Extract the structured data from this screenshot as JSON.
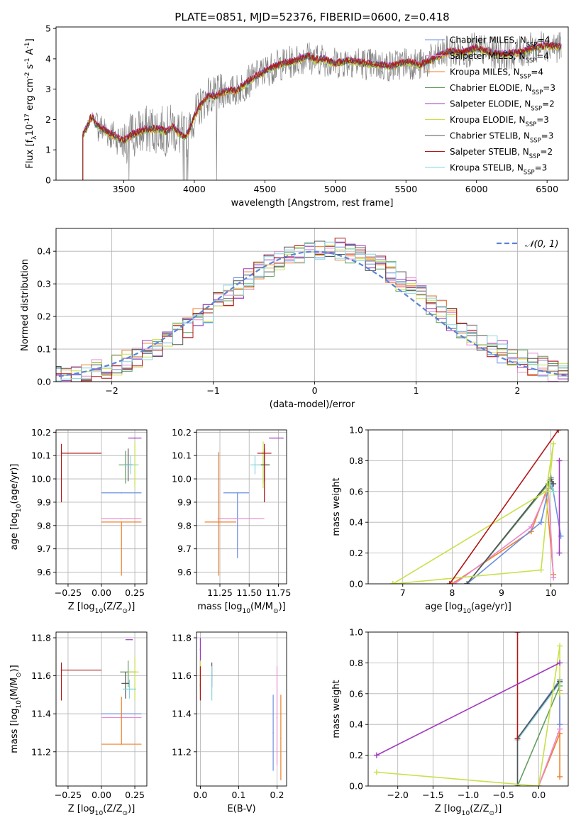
{
  "colors": {
    "chabrier_miles": "#6a8fe0",
    "salpeter_miles": "#e88ad0",
    "kroupa_miles": "#ef7f2a",
    "chabrier_elodie": "#5f9e5f",
    "salpeter_elodie": "#a03ac0",
    "kroupa_elodie": "#c9e04a",
    "chabrier_stelib": "#555555",
    "salpeter_stelib": "#b01818",
    "kroupa_stelib": "#86d4e0",
    "normal": "#5b84d4",
    "grid": "#b0b0b0",
    "data_spectrum": "#808080"
  },
  "chart_data": [
    {
      "id": "spectrum",
      "type": "line",
      "title": "PLATE=0851, MJD=52376, FIBERID=0600, z=0.418",
      "xlabel": "wavelength [Angstrom, rest frame]",
      "ylabel": "Flux [f$_\\lambda$10$^{-17}$ erg cm$^{-2}$ s$^{-1}$ A$^{-1}$]",
      "xlim": [
        3020,
        6650
      ],
      "ylim": [
        0,
        5.05
      ],
      "xticks": [
        "3500",
        "4000",
        "4500",
        "5000",
        "5500",
        "6000",
        "6500"
      ],
      "yticks": [
        "0",
        "1",
        "2",
        "3",
        "4",
        "5"
      ],
      "legend_position": "upper-right",
      "legend": [
        {
          "label": "Chabrier MILES, N$_{SSP}$=4",
          "color": "#6a8fe0"
        },
        {
          "label": "Salpeter MILES, N$_{SSP}$=4",
          "color": "#e88ad0"
        },
        {
          "label": "Kroupa MILES, N$_{SSP}$=4",
          "color": "#ef7f2a"
        },
        {
          "label": "Chabrier ELODIE, N$_{SSP}$=3",
          "color": "#5f9e5f"
        },
        {
          "label": "Salpeter ELODIE, N$_{SSP}$=2",
          "color": "#a03ac0"
        },
        {
          "label": "Kroupa ELODIE, N$_{SSP}$=3",
          "color": "#c9e04a"
        },
        {
          "label": "Chabrier STELIB, N$_{SSP}$=3",
          "color": "#555555"
        },
        {
          "label": "Salpeter STELIB, N$_{SSP}$=2",
          "color": "#b01818"
        },
        {
          "label": "Kroupa STELIB, N$_{SSP}$=3",
          "color": "#86d4e0"
        }
      ],
      "model_continuum": {
        "x": [
          3210,
          3240,
          3260,
          3280,
          3300,
          3330,
          3380,
          3450,
          3500,
          3560,
          3650,
          3720,
          3800,
          3850,
          3900,
          3930,
          3960,
          4000,
          4050,
          4100,
          4150,
          4200,
          4300,
          4400,
          4500,
          4600,
          4700,
          4800,
          4860,
          4900,
          5000,
          5100,
          5200,
          5300,
          5400,
          5500,
          5600,
          5700,
          5800,
          5900,
          6000,
          6100,
          6200,
          6300,
          6400,
          6500,
          6600
        ],
        "y": [
          1.5,
          1.75,
          2.0,
          2.1,
          1.85,
          1.75,
          1.6,
          1.4,
          1.3,
          1.5,
          1.65,
          1.7,
          1.6,
          1.75,
          1.5,
          1.4,
          1.6,
          2.1,
          2.5,
          2.8,
          2.75,
          2.9,
          2.95,
          3.3,
          3.6,
          3.8,
          3.9,
          4.1,
          3.95,
          4.0,
          3.85,
          3.95,
          3.85,
          3.8,
          3.75,
          3.9,
          3.8,
          4.0,
          4.25,
          4.2,
          4.35,
          4.2,
          4.15,
          4.2,
          4.35,
          4.45,
          4.4
        ]
      },
      "data_noise_amplitude": 0.55
    },
    {
      "id": "residuals",
      "type": "histogram",
      "xlabel": "(data-model)/error",
      "ylabel": "Normed distribution",
      "xlim": [
        -2.55,
        2.5
      ],
      "ylim": [
        0,
        0.47
      ],
      "xticks": [
        "−2",
        "−1",
        "0",
        "1",
        "2"
      ],
      "yticks": [
        "0.0",
        "0.1",
        "0.2",
        "0.3",
        "0.4"
      ],
      "legend_position": "upper-right",
      "normal_label": "$\\mathcal{N}(0,1)$",
      "bin_width": 0.1
    },
    {
      "id": "age_vs_Z",
      "type": "errorbar",
      "xlabel": "Z [log$_{10}$(Z/Z$_\\odot$)]",
      "ylabel": "age  [log$_{10}$(age/yr)]",
      "xlim": [
        -0.34,
        0.34
      ],
      "ylim": [
        9.55,
        10.21
      ],
      "xticks": [
        "−0.25",
        "0.00",
        "0.25"
      ],
      "yticks": [
        "9.6",
        "9.7",
        "9.8",
        "9.9",
        "10.0",
        "10.1",
        "10.2"
      ],
      "points": [
        {
          "color": "#6a8fe0",
          "x": 0.15,
          "xerr": [
            0.15,
            0.15
          ],
          "y": 9.94,
          "yerr": [
            0.0,
            0.0
          ]
        },
        {
          "color": "#e88ad0",
          "x": 0.15,
          "xerr": [
            0.15,
            0.15
          ],
          "y": 9.83,
          "yerr": [
            0.0,
            0.0
          ]
        },
        {
          "color": "#ef7f2a",
          "x": 0.15,
          "xerr": [
            0.15,
            0.15
          ],
          "y": 9.815,
          "yerr": [
            0.23,
            0.0
          ]
        },
        {
          "color": "#5f9e5f",
          "x": 0.18,
          "xerr": [
            0.05,
            0.06
          ],
          "y": 10.06,
          "yerr": [
            0.08,
            0.06
          ]
        },
        {
          "color": "#a03ac0",
          "x": 0.25,
          "xerr": [
            0.05,
            0.05
          ],
          "y": 10.175,
          "yerr": [
            0.0,
            0.0
          ]
        },
        {
          "color": "#c9e04a",
          "x": 0.25,
          "xerr": [
            0.05,
            0.03
          ],
          "y": 10.06,
          "yerr": [
            0.1,
            0.1
          ]
        },
        {
          "color": "#555555",
          "x": 0.2,
          "xerr": [
            0.03,
            0.03
          ],
          "y": 10.06,
          "yerr": [
            0.07,
            0.07
          ]
        },
        {
          "color": "#b01818",
          "x": -0.3,
          "xerr": [
            0.0,
            0.3
          ],
          "y": 10.11,
          "yerr": [
            0.21,
            0.04
          ]
        },
        {
          "color": "#86d4e0",
          "x": 0.22,
          "xerr": [
            0.05,
            0.05
          ],
          "y": 10.06,
          "yerr": [
            0.04,
            0.04
          ]
        }
      ]
    },
    {
      "id": "age_vs_mass",
      "type": "errorbar",
      "xlabel": "mass [log$_{10}$(M/M$_\\odot$)]",
      "ylabel": "",
      "xlim": [
        11.05,
        11.82
      ],
      "ylim": [
        9.55,
        10.21
      ],
      "xticks": [
        "11.25",
        "11.50",
        "11.75"
      ],
      "yticks": [
        "9.6",
        "9.7",
        "9.8",
        "9.9",
        "10.0",
        "10.1",
        "10.2"
      ],
      "points": [
        {
          "color": "#6a8fe0",
          "x": 11.4,
          "xerr": [
            0.12,
            0.1
          ],
          "y": 9.94,
          "yerr": [
            0.28,
            0.0
          ]
        },
        {
          "color": "#e88ad0",
          "x": 11.38,
          "xerr": [
            0.15,
            0.25
          ],
          "y": 9.83,
          "yerr": [
            0.0,
            0.0
          ]
        },
        {
          "color": "#ef7f2a",
          "x": 11.24,
          "xerr": [
            0.12,
            0.15
          ],
          "y": 9.815,
          "yerr": [
            0.23,
            0.3
          ]
        },
        {
          "color": "#5f9e5f",
          "x": 11.62,
          "xerr": [
            0.03,
            0.06
          ],
          "y": 10.06,
          "yerr": [
            0.08,
            0.06
          ]
        },
        {
          "color": "#a03ac0",
          "x": 11.79,
          "xerr": [
            0.12,
            0.0
          ],
          "y": 10.175,
          "yerr": [
            0.0,
            0.0
          ]
        },
        {
          "color": "#c9e04a",
          "x": 11.62,
          "xerr": [
            0.05,
            0.04
          ],
          "y": 10.06,
          "yerr": [
            0.1,
            0.1
          ]
        },
        {
          "color": "#555555",
          "x": 11.63,
          "xerr": [
            0.03,
            0.04
          ],
          "y": 10.06,
          "yerr": [
            0.07,
            0.07
          ]
        },
        {
          "color": "#b01818",
          "x": 11.63,
          "xerr": [
            0.06,
            0.06
          ],
          "y": 10.11,
          "yerr": [
            0.21,
            0.04
          ]
        },
        {
          "color": "#86d4e0",
          "x": 11.55,
          "xerr": [
            0.04,
            0.05
          ],
          "y": 10.06,
          "yerr": [
            0.04,
            0.04
          ]
        }
      ]
    },
    {
      "id": "massweight_vs_age",
      "type": "line",
      "xlabel": "age  [log$_{10}$(age/yr)]",
      "ylabel": "mass weight",
      "xlim": [
        6.3,
        10.35
      ],
      "ylim": [
        0,
        1.0
      ],
      "xticks": [
        "7",
        "8",
        "9",
        "10"
      ],
      "yticks": [
        "0.0",
        "0.2",
        "0.4",
        "0.6",
        "0.8",
        "1.0"
      ],
      "series": [
        {
          "color": "#ef7f2a",
          "x": [
            8.0,
            9.6,
            9.9,
            10.05
          ],
          "y": [
            0.0,
            0.34,
            0.6,
            0.06
          ]
        },
        {
          "color": "#e88ad0",
          "x": [
            8.05,
            9.6,
            9.95,
            10.05
          ],
          "y": [
            0.0,
            0.37,
            0.62,
            0.04
          ]
        },
        {
          "color": "#6a8fe0",
          "x": [
            8.3,
            9.8,
            10.0,
            10.2
          ],
          "y": [
            0.0,
            0.4,
            0.69,
            0.31
          ]
        },
        {
          "color": "#5f9e5f",
          "x": [
            8.3,
            9.95,
            10.05
          ],
          "y": [
            0.0,
            0.65,
            0.6
          ]
        },
        {
          "color": "#86d4e0",
          "x": [
            8.3,
            9.97,
            10.05
          ],
          "y": [
            0.0,
            0.67,
            0.6
          ]
        },
        {
          "color": "#555555",
          "x": [
            8.3,
            10.0,
            10.05
          ],
          "y": [
            0.0,
            0.68,
            0.65
          ]
        },
        {
          "color": "#c9e04a",
          "x": [
            6.8,
            9.8,
            10.05,
            9.9,
            6.8
          ],
          "y": [
            0.0,
            0.09,
            0.91,
            0.6,
            0.0
          ]
        },
        {
          "color": "#b01818",
          "x": [
            7.95,
            10.15
          ],
          "y": [
            0.0,
            1.0
          ]
        },
        {
          "color": "#a03ac0",
          "x": [
            10.17,
            10.17
          ],
          "y": [
            0.2,
            0.8
          ]
        }
      ]
    },
    {
      "id": "mass_vs_Z",
      "type": "errorbar",
      "xlabel": "Z [log$_{10}$(Z/Z$_\\odot$)]",
      "ylabel": "mass [log$_{10}$(M/M$_\\odot$)]",
      "xlim": [
        -0.34,
        0.34
      ],
      "ylim": [
        11.02,
        11.83
      ],
      "xticks": [
        "−0.25",
        "0.00",
        "0.25"
      ],
      "yticks": [
        "11.2",
        "11.4",
        "11.6",
        "11.8"
      ],
      "points": [
        {
          "color": "#6a8fe0",
          "x": 0.15,
          "xerr": [
            0.15,
            0.15
          ],
          "y": 11.4,
          "yerr": [
            0.0,
            0.0
          ]
        },
        {
          "color": "#e88ad0",
          "x": 0.15,
          "xerr": [
            0.15,
            0.15
          ],
          "y": 11.38,
          "yerr": [
            0.0,
            0.0
          ]
        },
        {
          "color": "#ef7f2a",
          "x": 0.15,
          "xerr": [
            0.15,
            0.15
          ],
          "y": 11.24,
          "yerr": [
            0.0,
            0.25
          ]
        },
        {
          "color": "#5f9e5f",
          "x": 0.2,
          "xerr": [
            0.06,
            0.06
          ],
          "y": 11.62,
          "yerr": [
            0.08,
            0.06
          ]
        },
        {
          "color": "#a03ac0",
          "x": 0.23,
          "xerr": [
            0.05,
            0.0
          ],
          "y": 11.79,
          "yerr": [
            0.0,
            0.0
          ]
        },
        {
          "color": "#c9e04a",
          "x": 0.25,
          "xerr": [
            0.05,
            0.03
          ],
          "y": 11.62,
          "yerr": [
            0.15,
            0.08
          ]
        },
        {
          "color": "#555555",
          "x": 0.18,
          "xerr": [
            0.03,
            0.03
          ],
          "y": 11.56,
          "yerr": [
            0.08,
            0.06
          ]
        },
        {
          "color": "#b01818",
          "x": -0.3,
          "xerr": [
            0.0,
            0.3
          ],
          "y": 11.63,
          "yerr": [
            0.16,
            0.04
          ]
        },
        {
          "color": "#86d4e0",
          "x": 0.21,
          "xerr": [
            0.05,
            0.05
          ],
          "y": 11.53,
          "yerr": [
            0.05,
            0.05
          ]
        }
      ]
    },
    {
      "id": "mass_vs_ebv",
      "type": "errorbar",
      "xlabel": "E(B-V)",
      "ylabel": "",
      "xlim": [
        -0.01,
        0.225
      ],
      "ylim": [
        11.02,
        11.83
      ],
      "xticks": [
        "0.0",
        "0.1",
        "0.2"
      ],
      "yticks": [
        "11.2",
        "11.4",
        "11.6",
        "11.8"
      ],
      "points": [
        {
          "color": "#6a8fe0",
          "x": 0.19,
          "y": 11.3,
          "yerr": [
            0.2,
            0.2
          ]
        },
        {
          "color": "#e88ad0",
          "x": 0.2,
          "y": 11.38,
          "yerr": [
            0.25,
            0.27
          ]
        },
        {
          "color": "#ef7f2a",
          "x": 0.21,
          "y": 11.27,
          "yerr": [
            0.22,
            0.23
          ]
        },
        {
          "color": "#5f9e5f",
          "x": 0.0,
          "y": 11.6,
          "yerr": [
            0.08,
            0.07
          ]
        },
        {
          "color": "#a03ac0",
          "x": 0.0,
          "y": 11.74,
          "yerr": [
            0.07,
            0.06
          ]
        },
        {
          "color": "#c9e04a",
          "x": 0.0,
          "y": 11.58,
          "yerr": [
            0.1,
            0.1
          ]
        },
        {
          "color": "#555555",
          "x": 0.03,
          "y": 11.6,
          "yerr": [
            0.06,
            0.07
          ]
        },
        {
          "color": "#b01818",
          "x": 0.0,
          "y": 11.55,
          "yerr": [
            0.08,
            0.1
          ]
        },
        {
          "color": "#86d4e0",
          "x": 0.03,
          "y": 11.57,
          "yerr": [
            0.1,
            0.08
          ]
        }
      ]
    },
    {
      "id": "massweight_vs_Z",
      "type": "line",
      "xlabel": "Z [log$_{10}$(Z/Z$_\\odot$)]",
      "ylabel": "mass weight",
      "xlim": [
        -2.42,
        0.42
      ],
      "ylim": [
        0,
        1.0
      ],
      "xticks": [
        "−2.0",
        "−1.5",
        "−1.0",
        "−0.5",
        "0.0"
      ],
      "yticks": [
        "0.0",
        "0.2",
        "0.4",
        "0.6",
        "0.8",
        "1.0"
      ],
      "series": [
        {
          "color": "#ef7f2a",
          "x": [
            0.0,
            0.3,
            0.3,
            0.3
          ],
          "y": [
            0.0,
            0.34,
            0.6,
            0.06
          ]
        },
        {
          "color": "#e88ad0",
          "x": [
            0.0,
            0.3,
            0.3
          ],
          "y": [
            0.0,
            0.37,
            0.62
          ]
        },
        {
          "color": "#6a8fe0",
          "x": [
            -0.3,
            0.3,
            0.3
          ],
          "y": [
            0.31,
            0.69,
            0.4
          ]
        },
        {
          "color": "#5f9e5f",
          "x": [
            -0.3,
            0.3,
            0.3
          ],
          "y": [
            0.0,
            0.65,
            0.6
          ]
        },
        {
          "color": "#86d4e0",
          "x": [
            -0.3,
            -0.3,
            0.3,
            0.3
          ],
          "y": [
            0.0,
            0.3,
            0.67,
            0.6
          ]
        },
        {
          "color": "#555555",
          "x": [
            -0.3,
            -0.3,
            0.3
          ],
          "y": [
            0.0,
            0.31,
            0.68
          ]
        },
        {
          "color": "#c9e04a",
          "x": [
            -2.3,
            0.0,
            0.3,
            0.3
          ],
          "y": [
            0.09,
            0.0,
            0.91,
            0.6
          ]
        },
        {
          "color": "#b01818",
          "x": [
            -0.3,
            -0.3
          ],
          "y": [
            0.31,
            1.0
          ]
        },
        {
          "color": "#a03ac0",
          "x": [
            -2.3,
            0.3
          ],
          "y": [
            0.2,
            0.8
          ]
        }
      ]
    }
  ]
}
